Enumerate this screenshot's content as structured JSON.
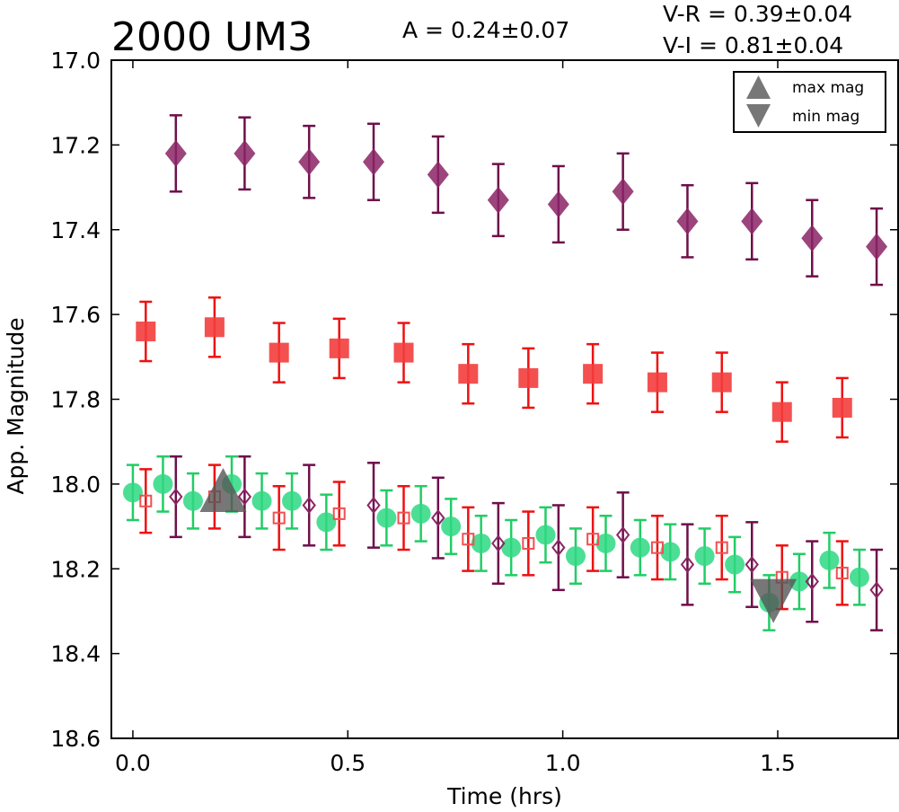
{
  "chart_data": {
    "type": "scatter",
    "title": "2000 UM3",
    "amplitude_label": "A  = 0.24±0.07",
    "colors_label": [
      "V-R = 0.39±0.04",
      "V-I  = 0.81±0.04"
    ],
    "xlabel": "Time (hrs)",
    "ylabel": "App. Magnitude",
    "xlim": [
      -0.05,
      1.78
    ],
    "ylim": [
      18.6,
      17.0
    ],
    "y_inverted": true,
    "xticks": [
      0.0,
      0.5,
      1.0,
      1.5
    ],
    "xtick_labels": [
      "0.0",
      "0.5",
      "1.0",
      "1.5"
    ],
    "yticks": [
      17.0,
      17.2,
      17.4,
      17.6,
      17.8,
      18.0,
      18.2,
      18.4,
      18.6
    ],
    "ytick_labels": [
      "17.0",
      "17.2",
      "17.4",
      "17.6",
      "17.8",
      "18.0",
      "18.2",
      "18.4",
      "18.6"
    ],
    "grid": false,
    "legend": {
      "placement": "top-right",
      "entries": [
        {
          "label": "max mag",
          "marker": "triangle-up",
          "color": "#777777"
        },
        {
          "label": "min mag",
          "marker": "triangle-down",
          "color": "#777777"
        }
      ]
    },
    "extrema": [
      {
        "kind": "max",
        "x": 0.21,
        "y": 18.03
      },
      {
        "kind": "min",
        "x": 1.49,
        "y": 18.26
      }
    ],
    "series": [
      {
        "marker": "diamond",
        "filled": true,
        "color": "#8b2566",
        "err_color": "#6e0f4a",
        "alpha": 0.85,
        "x": [
          0.1,
          0.26,
          0.41,
          0.56,
          0.71,
          0.85,
          0.99,
          1.14,
          1.29,
          1.44,
          1.58,
          1.73
        ],
        "y": [
          17.22,
          17.22,
          17.24,
          17.24,
          17.27,
          17.33,
          17.34,
          17.31,
          17.38,
          17.38,
          17.42,
          17.44
        ],
        "err": [
          0.09,
          0.085,
          0.085,
          0.09,
          0.09,
          0.085,
          0.09,
          0.09,
          0.085,
          0.09,
          0.09,
          0.09
        ]
      },
      {
        "marker": "square",
        "filled": true,
        "color": "#f33d3d",
        "err_color": "#ee1111",
        "alpha": 0.9,
        "x": [
          0.03,
          0.19,
          0.34,
          0.48,
          0.63,
          0.78,
          0.92,
          1.07,
          1.22,
          1.37,
          1.51,
          1.65
        ],
        "y": [
          17.64,
          17.63,
          17.69,
          17.68,
          17.69,
          17.74,
          17.75,
          17.74,
          17.76,
          17.76,
          17.83,
          17.82
        ],
        "err": [
          0.07,
          0.07,
          0.07,
          0.07,
          0.07,
          0.07,
          0.07,
          0.07,
          0.07,
          0.07,
          0.07,
          0.07
        ]
      },
      {
        "marker": "circle",
        "filled": true,
        "color": "#2ed882",
        "err_color": "#22cc66",
        "alpha": 0.85,
        "x": [
          0.0,
          0.07,
          0.14,
          0.23,
          0.3,
          0.37,
          0.45,
          0.59,
          0.67,
          0.74,
          0.81,
          0.88,
          0.96,
          1.03,
          1.1,
          1.18,
          1.25,
          1.33,
          1.4,
          1.48,
          1.55,
          1.62,
          1.69
        ],
        "y": [
          18.02,
          18.0,
          18.04,
          18.0,
          18.04,
          18.04,
          18.09,
          18.08,
          18.07,
          18.1,
          18.14,
          18.15,
          18.12,
          18.17,
          18.14,
          18.15,
          18.16,
          18.17,
          18.19,
          18.28,
          18.23,
          18.18,
          18.22
        ],
        "err": [
          0.065,
          0.065,
          0.065,
          0.065,
          0.065,
          0.065,
          0.065,
          0.065,
          0.065,
          0.065,
          0.065,
          0.065,
          0.065,
          0.065,
          0.065,
          0.065,
          0.065,
          0.065,
          0.065,
          0.065,
          0.065,
          0.065,
          0.065
        ]
      },
      {
        "marker": "square",
        "filled": false,
        "color": "#f05050",
        "err_color": "#ee1111",
        "alpha": 1,
        "x": [
          0.03,
          0.19,
          0.34,
          0.48,
          0.63,
          0.78,
          0.92,
          1.07,
          1.22,
          1.37,
          1.51,
          1.65
        ],
        "y": [
          18.04,
          18.03,
          18.08,
          18.07,
          18.08,
          18.13,
          18.14,
          18.13,
          18.15,
          18.15,
          18.22,
          18.21
        ],
        "err": [
          0.075,
          0.075,
          0.075,
          0.075,
          0.075,
          0.075,
          0.075,
          0.075,
          0.075,
          0.075,
          0.075,
          0.075
        ]
      },
      {
        "marker": "diamond",
        "filled": false,
        "color": "#8b2566",
        "err_color": "#6e0f4a",
        "alpha": 1,
        "x": [
          0.1,
          0.26,
          0.41,
          0.56,
          0.71,
          0.85,
          0.99,
          1.14,
          1.29,
          1.44,
          1.58,
          1.73
        ],
        "y": [
          18.03,
          18.03,
          18.05,
          18.05,
          18.08,
          18.14,
          18.15,
          18.12,
          18.19,
          18.19,
          18.23,
          18.25
        ],
        "err": [
          0.095,
          0.095,
          0.095,
          0.1,
          0.095,
          0.095,
          0.1,
          0.1,
          0.095,
          0.1,
          0.095,
          0.095
        ]
      }
    ]
  }
}
